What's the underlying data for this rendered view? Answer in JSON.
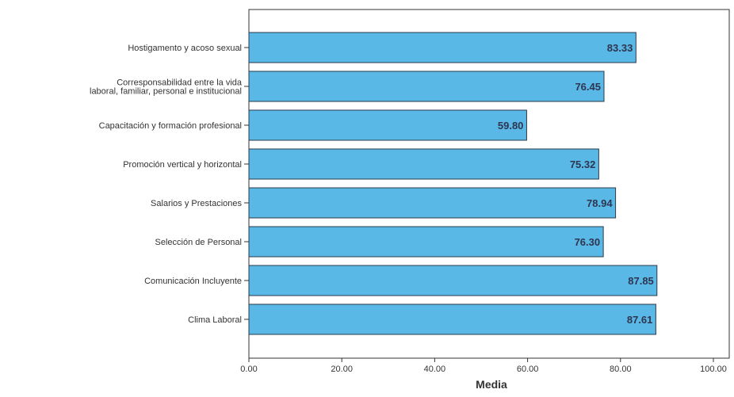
{
  "chart_data": {
    "type": "bar",
    "orientation": "horizontal",
    "categories": [
      "Hostigamento y acoso sexual",
      "Corresponsabilidad entre la vida laboral, familiar, personal e institucional",
      "Capacitación y formación profesional",
      "Promoción vertical y horizontal",
      "Salarios y Prestaciones",
      "Selección de Personal",
      "Comunicación Incluyente",
      "Clima Laboral"
    ],
    "category_lines": [
      [
        "Hostigamento y acoso sexual"
      ],
      [
        "Corresponsabilidad entre la vida",
        "laboral, familiar, personal e institucional"
      ],
      [
        "Capacitación y formación profesional"
      ],
      [
        "Promoción vertical y horizontal"
      ],
      [
        "Salarios y Prestaciones"
      ],
      [
        "Selección de Personal"
      ],
      [
        "Comunicación Incluyente"
      ],
      [
        "Clima Laboral"
      ]
    ],
    "values": [
      83.33,
      76.45,
      59.8,
      75.32,
      78.94,
      76.3,
      87.85,
      87.61
    ],
    "data_labels": [
      "83.33",
      "76.45",
      "59.80",
      "75.32",
      "78.94",
      "76.30",
      "87.85",
      "87.61"
    ],
    "xlabel": "Media",
    "ylabel": "",
    "xlim": [
      0,
      100
    ],
    "xticks": [
      0,
      20,
      40,
      60,
      80,
      100
    ],
    "xtick_labels": [
      "0.00",
      "20.00",
      "40.00",
      "60.00",
      "80.00",
      "100.00"
    ],
    "grid": false,
    "colors": {
      "bar_fill": "#5ab8e6",
      "bar_stroke": "#2b3a4a",
      "axis": "#333333",
      "text": "#333333",
      "value_text": "#2e3550"
    }
  }
}
